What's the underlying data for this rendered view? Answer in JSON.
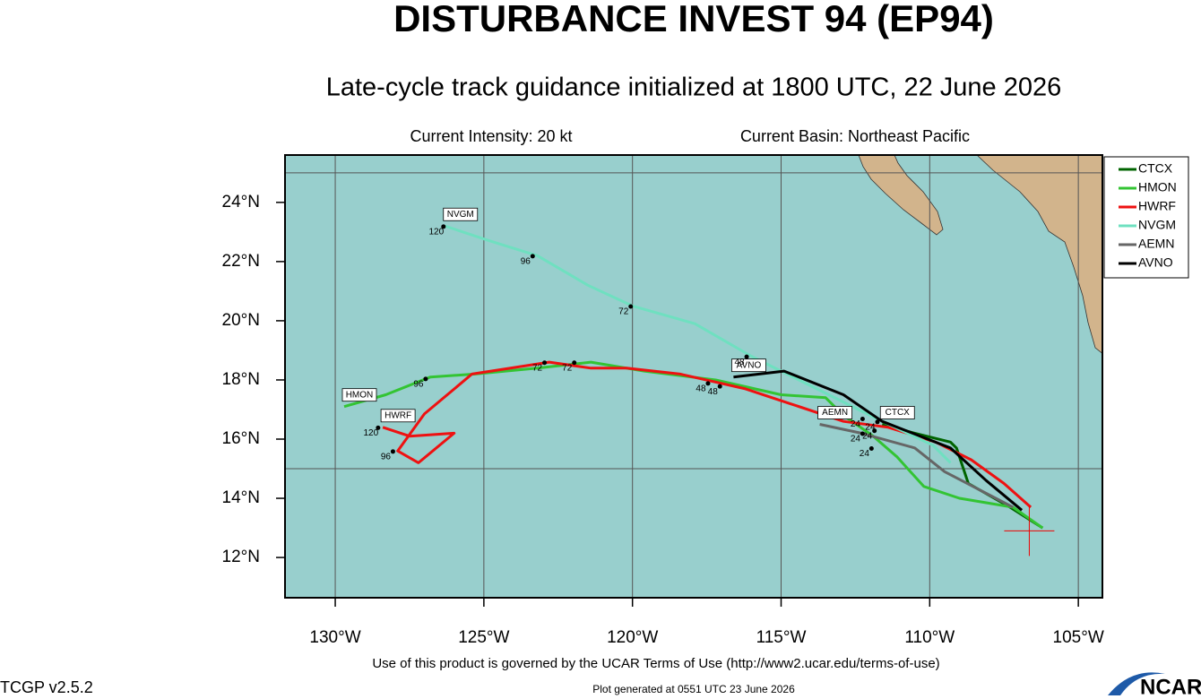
{
  "chart_data": {
    "type": "track-map",
    "title": "DISTURBANCE INVEST 94 (EP94)",
    "subtitle": "Late-cycle track guidance initialized at 1800 UTC, 22 June 2026",
    "intensity": "Current Intensity: 20 kt",
    "basin": "Current Basin: Northeast Pacific",
    "terms": "Use of this product is governed by the UCAR Terms of Use (http://www2.ucar.edu/terms-of-use)",
    "version": "TCGP v2.5.2",
    "generated": "Plot generated at 0551 UTC   23 June 2026",
    "logo": "NCAR",
    "xlim": [
      -131.69,
      -104.19
    ],
    "ylim": [
      10.64,
      25.6
    ],
    "xticks": [
      {
        "value": -130,
        "label": "130°W"
      },
      {
        "value": -125,
        "label": "125°W"
      },
      {
        "value": -120,
        "label": "120°W"
      },
      {
        "value": -115,
        "label": "115°W"
      },
      {
        "value": -110,
        "label": "110°W"
      },
      {
        "value": -105,
        "label": "105°W"
      }
    ],
    "yticks": [
      {
        "value": 12,
        "label": "12°N"
      },
      {
        "value": 14,
        "label": "14°N"
      },
      {
        "value": 16,
        "label": "16°N"
      },
      {
        "value": 18,
        "label": "18°N"
      },
      {
        "value": 20,
        "label": "20°N"
      },
      {
        "value": 22,
        "label": "22°N"
      },
      {
        "value": 24,
        "label": "24°N"
      }
    ],
    "ygrid": [
      15,
      25
    ],
    "current_position": {
      "x": -106.65,
      "y": 12.9
    },
    "series": [
      {
        "name": "CTCX",
        "color": "#006400",
        "x": [
          -106.2,
          -107.3,
          -108.7,
          -109.1,
          -109.3,
          -110.5,
          -111.6
        ],
        "values": [
          13.0,
          13.7,
          14.5,
          15.7,
          15.9,
          16.2,
          16.5
        ]
      },
      {
        "name": "HMON",
        "color": "#33c433",
        "x": [
          -106.2,
          -107.2,
          -109.0,
          -110.2,
          -111.1,
          -111.9,
          -112.9,
          -113.5,
          -115.0,
          -117.2,
          -119.6,
          -121.4,
          -123.2,
          -125.3,
          -126.8,
          -128.3,
          -129.7
        ],
        "values": [
          13.0,
          13.7,
          14.0,
          14.4,
          15.4,
          16.1,
          16.8,
          17.4,
          17.5,
          18.0,
          18.3,
          18.6,
          18.4,
          18.2,
          18.1,
          17.5,
          17.1
        ]
      },
      {
        "name": "HWRF",
        "color": "#ee1111",
        "x": [
          -106.6,
          -107.5,
          -108.6,
          -109.8,
          -111.4,
          -112.9,
          -114.7,
          -116.2,
          -118.4,
          -120.2,
          -121.4,
          -122.8,
          -125.4,
          -127.0,
          -127.9,
          -127.2,
          -126.0,
          -127.5,
          -128.4
        ],
        "values": [
          13.7,
          14.5,
          15.3,
          15.9,
          16.4,
          16.6,
          17.2,
          17.7,
          18.2,
          18.4,
          18.4,
          18.6,
          18.2,
          16.85,
          15.6,
          15.2,
          16.2,
          16.1,
          16.4
        ]
      },
      {
        "name": "NVGM",
        "color": "#6fe0c0",
        "x": [
          -109.3,
          -109.9,
          -111.6,
          -113.8,
          -115.0,
          -116.0,
          -117.9,
          -120.0,
          -121.5,
          -123.2,
          -124.8,
          -126.3
        ],
        "values": [
          15.2,
          15.8,
          16.6,
          17.7,
          18.3,
          18.8,
          19.9,
          20.5,
          21.2,
          22.2,
          22.7,
          23.2
        ]
      },
      {
        "name": "AEMN",
        "color": "#666666",
        "x": [
          -107.2,
          -109.5,
          -110.5,
          -112.3,
          -113.7
        ],
        "values": [
          13.7,
          14.9,
          15.7,
          16.2,
          16.5
        ]
      },
      {
        "name": "AVNO",
        "color": "#000000",
        "x": [
          -106.9,
          -108.1,
          -109.3,
          -111.6,
          -112.9,
          -114.9,
          -116.6
        ],
        "values": [
          13.6,
          14.6,
          15.7,
          16.6,
          17.5,
          18.3,
          18.1
        ]
      }
    ],
    "annotations": [
      {
        "text": "120",
        "x": -126.6,
        "y": 23.0
      },
      {
        "text": "96",
        "x": -123.6,
        "y": 22.0
      },
      {
        "text": "72",
        "x": -120.3,
        "y": 20.3
      },
      {
        "text": "48",
        "x": -116.4,
        "y": 18.6
      },
      {
        "text": "96",
        "x": -127.2,
        "y": 17.85
      },
      {
        "text": "72",
        "x": -123.2,
        "y": 18.4
      },
      {
        "text": "72",
        "x": -122.2,
        "y": 18.4
      },
      {
        "text": "48",
        "x": -117.7,
        "y": 17.7
      },
      {
        "text": "48",
        "x": -117.3,
        "y": 17.6
      },
      {
        "text": "24",
        "x": -112.5,
        "y": 16.5
      },
      {
        "text": "24",
        "x": -112.0,
        "y": 16.4
      },
      {
        "text": "24",
        "x": -112.1,
        "y": 16.1
      },
      {
        "text": "24",
        "x": -112.5,
        "y": 16.0
      },
      {
        "text": "24",
        "x": -112.2,
        "y": 15.5
      },
      {
        "text": "120",
        "x": -128.8,
        "y": 16.2
      },
      {
        "text": "96",
        "x": -128.3,
        "y": 15.4
      }
    ]
  }
}
